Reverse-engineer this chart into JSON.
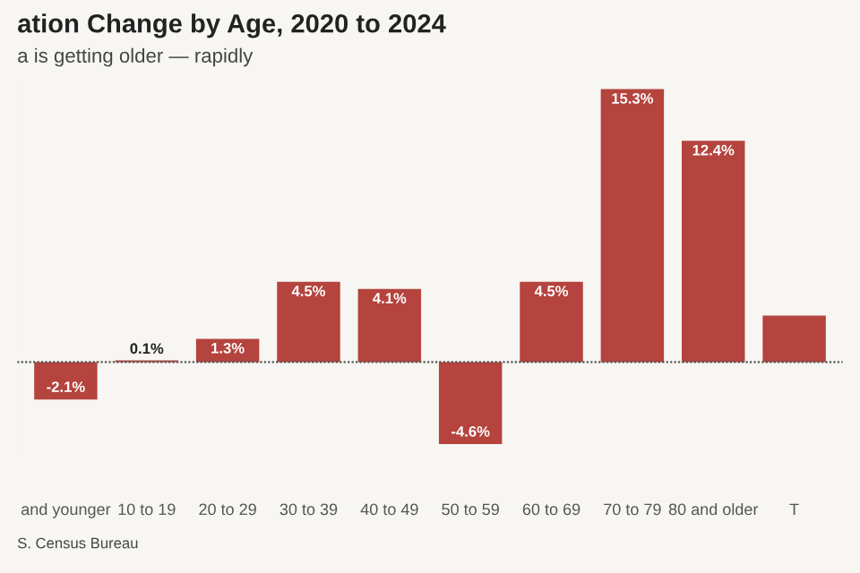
{
  "chart_data": {
    "type": "bar",
    "title": "ation Change by Age, 2020 to 2024",
    "subtitle": "a is getting older — rapidly",
    "categories": [
      "and younger",
      "10 to 19",
      "20 to 29",
      "30 to 39",
      "40 to 49",
      "50 to 59",
      "60 to 69",
      "70 to 79",
      "80 and older",
      "T"
    ],
    "values": [
      -2.1,
      0.1,
      1.3,
      4.5,
      4.1,
      -4.6,
      4.5,
      15.3,
      12.4,
      2.6
    ],
    "value_labels": [
      "-2.1%",
      "0.1%",
      "1.3%",
      "4.5%",
      "4.1%",
      "-4.6%",
      "4.5%",
      "15.3%",
      "12.4%",
      null
    ],
    "ref_lines": [
      {
        "axis": "y",
        "value": 0,
        "color": "#555555",
        "line_style": "dotted"
      }
    ],
    "color": "#b5433e",
    "grid": false,
    "legend": false,
    "annotations": [
      "S. Census Bureau"
    ]
  }
}
